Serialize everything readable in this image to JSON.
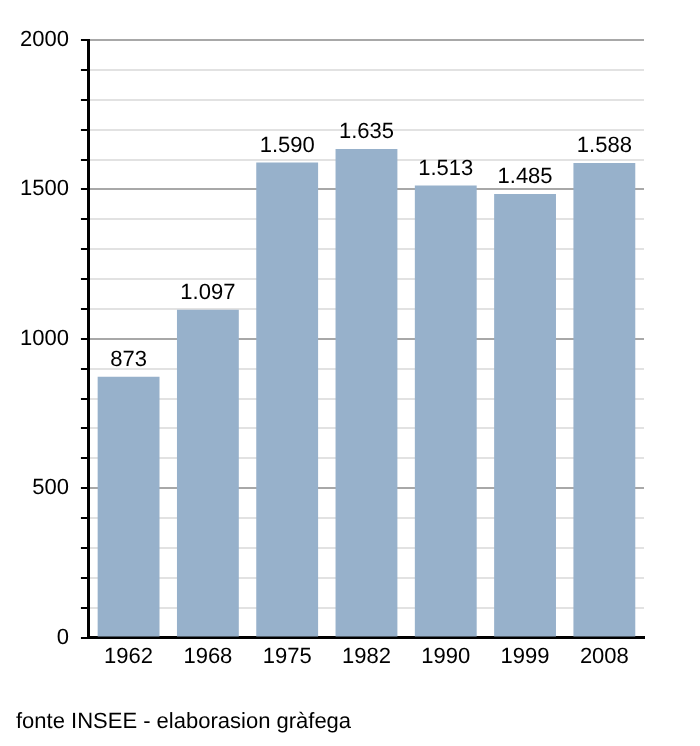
{
  "chart_data": {
    "type": "bar",
    "categories": [
      "1962",
      "1968",
      "1975",
      "1982",
      "1990",
      "1999",
      "2008"
    ],
    "values": [
      873,
      1097,
      1590,
      1635,
      1513,
      1485,
      1588
    ],
    "value_labels": [
      "873",
      "1.097",
      "1.590",
      "1.635",
      "1.513",
      "1.485",
      "1.588"
    ],
    "color": "#97b1cb",
    "ylim": [
      0,
      2000
    ],
    "yticks": [
      0,
      {
        "value": 100,
        "label": null
      },
      {
        "value": 200,
        "label": null
      },
      {
        "value": 300,
        "label": null
      },
      {
        "value": 400,
        "label": null
      },
      500,
      {
        "value": 600,
        "label": null
      },
      {
        "value": 700,
        "label": null
      },
      {
        "value": 800,
        "label": null
      },
      {
        "value": 900,
        "label": null
      },
      1000,
      {
        "value": 1100,
        "label": null
      },
      {
        "value": 1200,
        "label": null
      },
      {
        "value": 1300,
        "label": null
      },
      {
        "value": 1400,
        "label": null
      },
      1500,
      {
        "value": 1600,
        "label": null
      },
      {
        "value": 1700,
        "label": null
      },
      {
        "value": 1800,
        "label": null
      },
      {
        "value": 1900,
        "label": null
      },
      2000
    ],
    "grid": "y",
    "annotations": [
      "fonte INSEE - elaborasion gràfega"
    ]
  }
}
